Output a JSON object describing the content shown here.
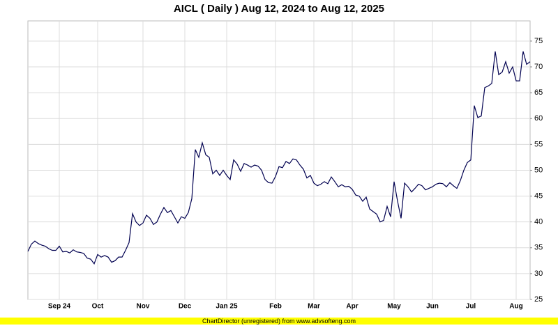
{
  "chart_data": {
    "type": "line",
    "title": "AICL ( Daily ) Aug 12, 2024 to Aug 12, 2025",
    "footer": "ChartDirector (unregistered) from www.advsofteng.com",
    "categories": [
      null,
      null,
      null,
      null,
      null,
      null,
      null,
      null,
      null,
      "Sep 24",
      null,
      null,
      null,
      null,
      null,
      null,
      null,
      null,
      null,
      null,
      "Oct",
      null,
      null,
      null,
      null,
      null,
      null,
      null,
      null,
      null,
      null,
      null,
      null,
      "Nov",
      null,
      null,
      null,
      null,
      null,
      null,
      null,
      null,
      null,
      null,
      null,
      "Dec",
      null,
      null,
      null,
      null,
      null,
      null,
      null,
      null,
      null,
      null,
      null,
      "Jan 25",
      null,
      null,
      null,
      null,
      null,
      null,
      null,
      null,
      null,
      null,
      null,
      null,
      null,
      "Feb",
      null,
      null,
      null,
      null,
      null,
      null,
      null,
      null,
      null,
      null,
      "Mar",
      null,
      null,
      null,
      null,
      null,
      null,
      null,
      null,
      null,
      null,
      "Apr",
      null,
      null,
      null,
      null,
      null,
      null,
      null,
      null,
      null,
      null,
      null,
      "May",
      null,
      null,
      null,
      null,
      null,
      null,
      null,
      null,
      null,
      null,
      "Jun",
      null,
      null,
      null,
      null,
      null,
      null,
      null,
      null,
      null,
      null,
      "Jul",
      null,
      null,
      null,
      null,
      null,
      null,
      null,
      null,
      null,
      null,
      null,
      null,
      "Aug",
      null,
      null,
      null,
      null
    ],
    "series": [
      {
        "name": "AICL",
        "color": "#000050",
        "values": [
          34.3,
          35.7,
          36.3,
          35.8,
          35.5,
          35.3,
          34.8,
          34.5,
          34.5,
          35.3,
          34.2,
          34.3,
          34.0,
          34.6,
          34.2,
          34.1,
          33.9,
          33.0,
          32.8,
          31.9,
          33.7,
          33.2,
          33.5,
          33.2,
          32.2,
          32.5,
          33.2,
          33.2,
          34.5,
          36.0,
          41.6,
          40.0,
          39.3,
          39.8,
          41.3,
          40.7,
          39.5,
          40.0,
          41.5,
          42.8,
          41.8,
          42.2,
          41.0,
          39.8,
          41.0,
          40.7,
          41.8,
          44.5,
          54.0,
          52.5,
          55.3,
          53.0,
          52.5,
          49.3,
          50.0,
          49.0,
          50.0,
          49.0,
          48.2,
          52.0,
          51.2,
          49.8,
          51.3,
          51.0,
          50.6,
          51.0,
          50.8,
          50.0,
          48.2,
          47.6,
          47.5,
          48.8,
          50.7,
          50.5,
          51.7,
          51.3,
          52.2,
          52.0,
          51.0,
          50.2,
          48.5,
          49.0,
          47.5,
          47.0,
          47.3,
          47.8,
          47.4,
          48.7,
          47.8,
          46.8,
          47.2,
          46.8,
          46.9,
          46.3,
          45.2,
          45.0,
          44.0,
          44.8,
          42.5,
          42.0,
          41.5,
          40.0,
          40.3,
          43.0,
          41.0,
          47.8,
          44.0,
          40.7,
          47.5,
          46.8,
          45.8,
          46.5,
          47.3,
          47.0,
          46.2,
          46.5,
          46.8,
          47.3,
          47.5,
          47.4,
          46.8,
          47.6,
          47.0,
          46.5,
          48.0,
          50.0,
          51.5,
          52.0,
          62.5,
          60.2,
          60.5,
          66.0,
          66.3,
          66.8,
          73.0,
          68.5,
          69.0,
          71.0,
          68.8,
          70.0,
          67.3,
          67.3,
          73.0,
          70.5,
          71.0
        ]
      }
    ],
    "ylim": [
      25,
      78.9
    ],
    "yticks": [
      25,
      30,
      35,
      40,
      45,
      50,
      55,
      60,
      65,
      70,
      75
    ],
    "grid": true
  }
}
